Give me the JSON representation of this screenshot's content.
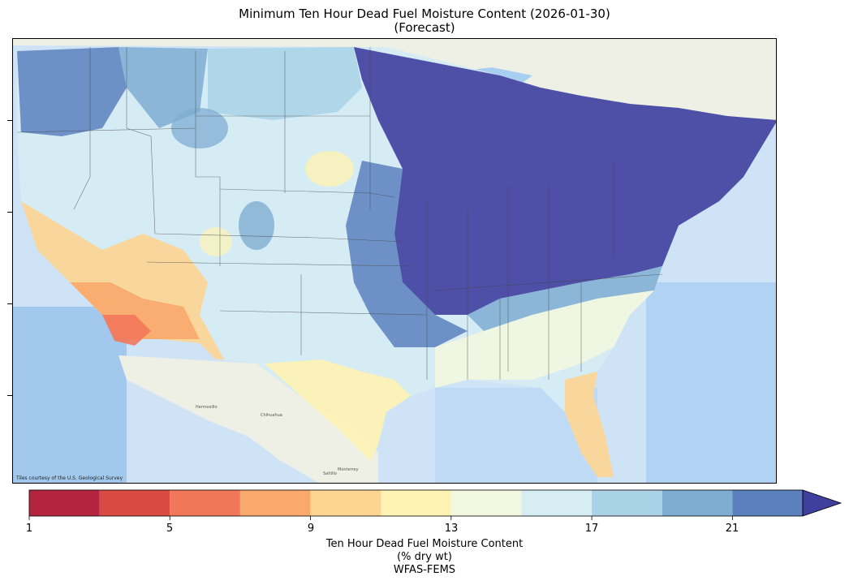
{
  "title": {
    "line1": "Minimum Ten Hour Dead Fuel Moisture Content (2026-01-30)",
    "line2": "(Forecast)"
  },
  "map": {
    "credit": "Tiles courtesy of the U.S. Geological Survey",
    "basemap_colors": {
      "ocean": "#cfe3f7",
      "ocean_deep": "#8fbde8",
      "land": "#eef0e6",
      "lake": "#a9cff0"
    },
    "place_labels": [
      "Hermosillo",
      "Chihuahua",
      "Monterrey",
      "Saltillo"
    ]
  },
  "colorbar": {
    "tick_labels": [
      "1",
      "5",
      "9",
      "13",
      "17",
      "21"
    ],
    "bins": [
      1,
      3,
      5,
      7,
      9,
      11,
      13,
      15,
      17,
      19,
      21,
      23
    ],
    "colors": [
      "#b4243f",
      "#d94a43",
      "#f1775a",
      "#f9a96c",
      "#fdd491",
      "#fef3b3",
      "#f2f7e0",
      "#d7edf4",
      "#a9d2e6",
      "#7fadd1",
      "#5b80bd",
      "#3f3f9e"
    ],
    "extend": "max"
  },
  "caption": {
    "line1": "Ten Hour Dead Fuel Moisture Content",
    "line2": "(% dry wt)",
    "line3": "WFAS-FEMS"
  }
}
